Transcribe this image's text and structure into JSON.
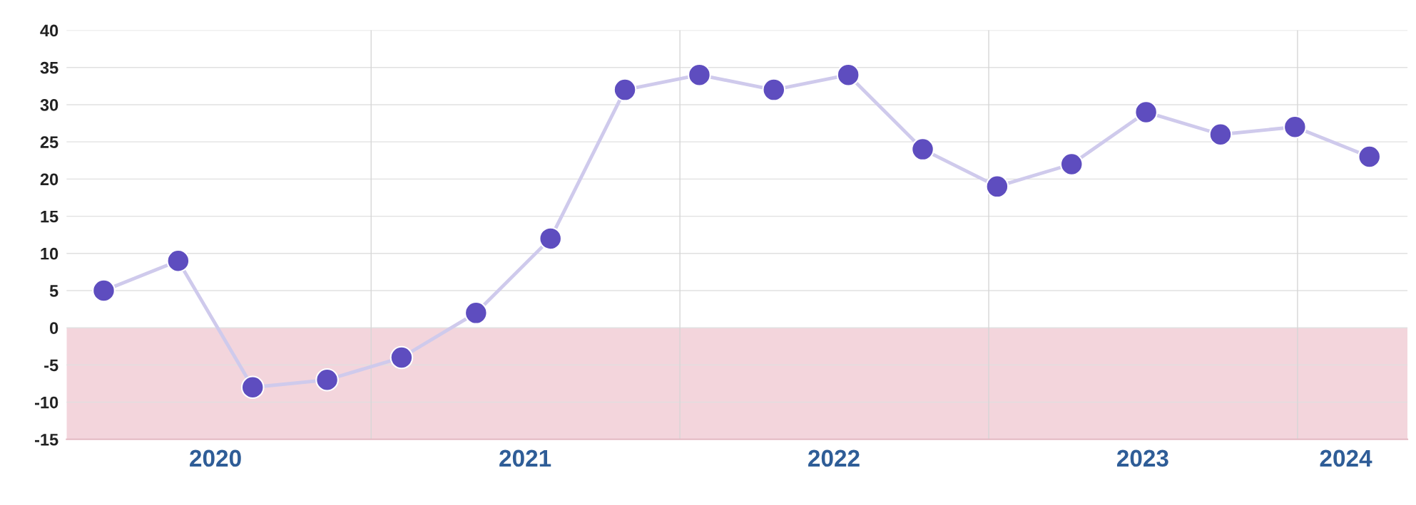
{
  "chart_data": {
    "type": "line",
    "x": [
      "2020-02-20",
      "2020-05-18",
      "2020-08-14",
      "2020-11-10",
      "2021-02-06",
      "2021-05-05",
      "2021-08-01",
      "2021-10-28",
      "2022-01-24",
      "2022-04-22",
      "2022-07-19",
      "2022-10-15",
      "2023-01-11",
      "2023-04-09",
      "2023-07-06",
      "2023-10-02",
      "2023-12-29",
      "2024-03-26"
    ],
    "series": [
      {
        "color": "#5e4dbf",
        "values": [
          5,
          9,
          -8,
          -7,
          -4,
          2,
          12,
          32,
          34,
          32,
          34,
          24,
          19,
          22,
          29,
          26,
          27,
          23
        ]
      }
    ],
    "marker": "circle",
    "line_style": "solid",
    "xlim": [
      "2020-01-07",
      "2024-05-10"
    ],
    "xticks": [
      {
        "value": "2020-07-01",
        "label": "2020"
      },
      {
        "value": "2021-01-01",
        "label": null
      },
      {
        "value": "2021-07-02",
        "label": "2021"
      },
      {
        "value": "2022-01-01",
        "label": null
      },
      {
        "value": "2022-07-02",
        "label": "2022"
      },
      {
        "value": "2023-01-01",
        "label": null
      },
      {
        "value": "2023-07-02",
        "label": "2023"
      },
      {
        "value": "2024-01-01",
        "label": null
      },
      {
        "value": "2024-02-27",
        "label": "2024"
      }
    ],
    "ylim": [
      -15,
      40
    ],
    "yticks": [
      -15,
      -10,
      -5,
      0,
      5,
      10,
      15,
      20,
      25,
      30,
      35,
      40
    ],
    "bands": [
      {
        "axis": "y",
        "from": -15,
        "to": 0,
        "color": "#f3d5dc"
      }
    ],
    "grid": true
  }
}
